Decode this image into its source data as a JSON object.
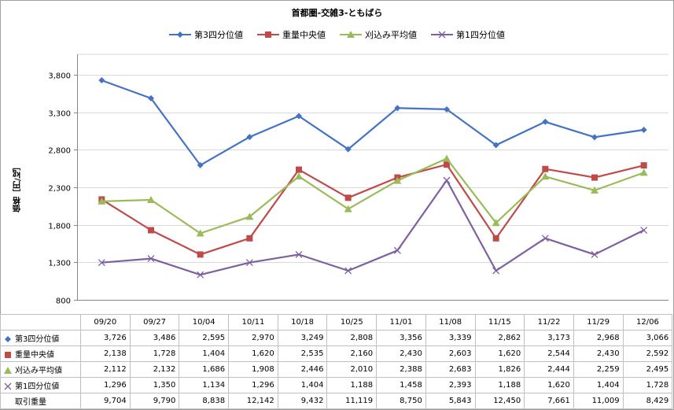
{
  "chart_data": {
    "type": "line",
    "title": "首都圏-交雑3-ともばら",
    "ylabel": "価格［円/㎏］",
    "xlabel": "",
    "categories": [
      "09/20",
      "09/27",
      "10/04",
      "10/11",
      "10/18",
      "10/25",
      "11/01",
      "11/08",
      "11/15",
      "11/22",
      "11/29",
      "12/06"
    ],
    "yticks": [
      "800",
      "1,300",
      "1,800",
      "2,300",
      "2,800",
      "3,300",
      "3,800"
    ],
    "ylim": [
      800,
      3800
    ],
    "grid": "horizontal",
    "legend_position": "top",
    "series": [
      {
        "name": "第3四分位値",
        "color": "#4472C4",
        "marker": "diamond",
        "values": [
          3726,
          3486,
          2595,
          2970,
          3249,
          2808,
          3356,
          3339,
          2862,
          3173,
          2968,
          3066
        ],
        "labels": [
          "3,726",
          "3,486",
          "2,595",
          "2,970",
          "3,249",
          "2,808",
          "3,356",
          "3,339",
          "2,862",
          "3,173",
          "2,968",
          "3,066"
        ]
      },
      {
        "name": "重量中央値",
        "color": "#BE4B48",
        "marker": "square",
        "values": [
          2138,
          1728,
          1404,
          1620,
          2535,
          2160,
          2430,
          2603,
          1620,
          2544,
          2430,
          2592
        ],
        "labels": [
          "2,138",
          "1,728",
          "1,404",
          "1,620",
          "2,535",
          "2,160",
          "2,430",
          "2,603",
          "1,620",
          "2,544",
          "2,430",
          "2,592"
        ]
      },
      {
        "name": "刈込み平均値",
        "color": "#9BBB59",
        "marker": "triangle",
        "values": [
          2112,
          2132,
          1686,
          1908,
          2446,
          2010,
          2388,
          2683,
          1826,
          2444,
          2259,
          2495
        ],
        "labels": [
          "2,112",
          "2,132",
          "1,686",
          "1,908",
          "2,446",
          "2,010",
          "2,388",
          "2,683",
          "1,826",
          "2,444",
          "2,259",
          "2,495"
        ]
      },
      {
        "name": "第1四分位値",
        "color": "#7E60A1",
        "marker": "x",
        "values": [
          1296,
          1350,
          1134,
          1296,
          1404,
          1188,
          1458,
          2393,
          1188,
          1620,
          1404,
          1728
        ],
        "labels": [
          "1,296",
          "1,350",
          "1,134",
          "1,296",
          "1,404",
          "1,188",
          "1,458",
          "2,393",
          "1,188",
          "1,620",
          "1,404",
          "1,728"
        ]
      }
    ],
    "extra_rows": [
      {
        "name": "取引重量",
        "labels": [
          "9,704",
          "9,790",
          "8,838",
          "12,142",
          "9,432",
          "11,119",
          "8,750",
          "5,843",
          "12,450",
          "7,661",
          "11,009",
          "8,429"
        ]
      }
    ]
  }
}
